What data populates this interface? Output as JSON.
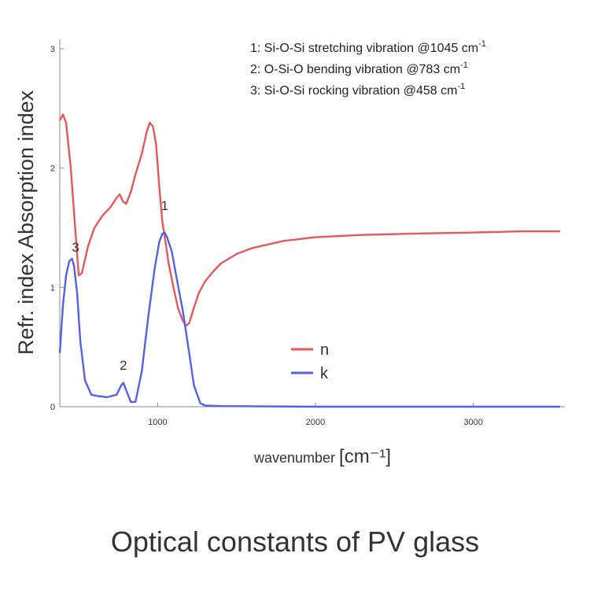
{
  "chart_data": {
    "type": "line",
    "title": "Optical constants of PV glass",
    "xlabel": "wavenumber [cm⁻¹]",
    "ylabel": "Refr. index  Absorption index",
    "xlim": [
      380,
      3550
    ],
    "ylim": [
      0,
      3
    ],
    "xticks": [
      1000,
      2000,
      3000
    ],
    "yticks": [
      0,
      1,
      2,
      3
    ],
    "grid": false,
    "legend_position": "center-right",
    "series": [
      {
        "name": "n",
        "color": "#e8575c",
        "x": [
          380,
          400,
          420,
          450,
          480,
          500,
          520,
          560,
          600,
          650,
          700,
          740,
          760,
          780,
          800,
          830,
          860,
          900,
          930,
          950,
          970,
          990,
          1010,
          1030,
          1050,
          1070,
          1100,
          1130,
          1160,
          1180,
          1200,
          1230,
          1260,
          1300,
          1350,
          1400,
          1500,
          1600,
          1800,
          2000,
          2300,
          2600,
          3000,
          3300,
          3550
        ],
        "y": [
          2.4,
          2.45,
          2.38,
          2.0,
          1.45,
          1.1,
          1.12,
          1.35,
          1.5,
          1.6,
          1.67,
          1.75,
          1.78,
          1.72,
          1.7,
          1.8,
          1.95,
          2.12,
          2.3,
          2.38,
          2.35,
          2.2,
          1.85,
          1.55,
          1.38,
          1.2,
          1.0,
          0.82,
          0.72,
          0.68,
          0.7,
          0.83,
          0.95,
          1.05,
          1.13,
          1.2,
          1.28,
          1.33,
          1.39,
          1.42,
          1.44,
          1.45,
          1.46,
          1.47,
          1.47
        ]
      },
      {
        "name": "k",
        "color": "#5560e8",
        "x": [
          380,
          400,
          420,
          440,
          458,
          470,
          490,
          510,
          540,
          580,
          620,
          680,
          740,
          770,
          783,
          800,
          830,
          860,
          900,
          940,
          980,
          1010,
          1030,
          1045,
          1060,
          1090,
          1120,
          1160,
          1200,
          1230,
          1270,
          1300,
          1400,
          2000,
          3000,
          3550
        ],
        "y": [
          0.45,
          0.85,
          1.1,
          1.22,
          1.24,
          1.18,
          0.95,
          0.55,
          0.22,
          0.1,
          0.09,
          0.08,
          0.1,
          0.18,
          0.2,
          0.14,
          0.04,
          0.04,
          0.3,
          0.75,
          1.15,
          1.38,
          1.45,
          1.46,
          1.42,
          1.3,
          1.08,
          0.8,
          0.45,
          0.18,
          0.03,
          0.01,
          0.005,
          0.0,
          0.0,
          0.0
        ]
      }
    ],
    "point_labels": [
      {
        "text": "1",
        "x": 1045,
        "y": 1.65
      },
      {
        "text": "2",
        "x": 783,
        "y": 0.31
      },
      {
        "text": "3",
        "x": 480,
        "y": 1.3
      }
    ],
    "annotations": [
      {
        "prefix": "1: Si-O-Si stretching vibration @1045 cm",
        "sup": "-1"
      },
      {
        "prefix": "2: O-Si-O bending vibration @783 cm",
        "sup": "-1"
      },
      {
        "prefix": "3: Si-O-Si rocking vibration @458 cm",
        "sup": "-1"
      }
    ]
  }
}
